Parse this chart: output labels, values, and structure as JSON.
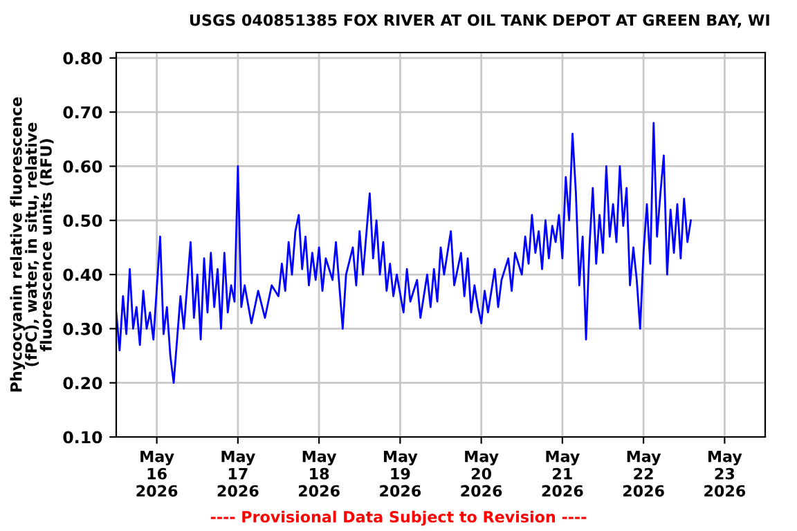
{
  "chart_data": {
    "type": "line",
    "title": "USGS 040851385 FOX RIVER AT OIL TANK DEPOT AT GREEN BAY, WI",
    "ylabel": "Phycocyanin relative fluorescence\n(fPC), water, in situ, relative\nfluorescence units (RFU)",
    "annotations": [
      "---- Provisional Data Subject to Revision ----"
    ],
    "xlim": [
      "2026-05-15T12:00",
      "2026-05-23T12:00"
    ],
    "xticks": [
      {
        "value": "2026-05-16",
        "label": "May\n16\n2026"
      },
      {
        "value": "2026-05-17",
        "label": "May\n17\n2026"
      },
      {
        "value": "2026-05-18",
        "label": "May\n18\n2026"
      },
      {
        "value": "2026-05-19",
        "label": "May\n19\n2026"
      },
      {
        "value": "2026-05-20",
        "label": "May\n20\n2026"
      },
      {
        "value": "2026-05-21",
        "label": "May\n21\n2026"
      },
      {
        "value": "2026-05-22",
        "label": "May\n22\n2026"
      },
      {
        "value": "2026-05-23",
        "label": "May\n23\n2026"
      }
    ],
    "ylim": [
      0.1,
      0.81
    ],
    "yticks": [
      {
        "value": 0.1,
        "label": "0.10"
      },
      {
        "value": 0.2,
        "label": "0.20"
      },
      {
        "value": 0.3,
        "label": "0.30"
      },
      {
        "value": 0.4,
        "label": "0.40"
      },
      {
        "value": 0.5,
        "label": "0.50"
      },
      {
        "value": 0.6,
        "label": "0.60"
      },
      {
        "value": 0.7,
        "label": "0.70"
      },
      {
        "value": 0.8,
        "label": "0.80"
      }
    ],
    "grid": true,
    "legend": false,
    "marker": "none",
    "line_style": "solid",
    "series": [
      {
        "color": "#0000ff",
        "x": [
          "2026-05-15T12:00",
          "2026-05-15T13:00",
          "2026-05-15T14:00",
          "2026-05-15T15:00",
          "2026-05-15T16:00",
          "2026-05-15T17:00",
          "2026-05-15T18:00",
          "2026-05-15T19:00",
          "2026-05-15T20:00",
          "2026-05-15T21:00",
          "2026-05-15T22:00",
          "2026-05-15T23:00",
          "2026-05-16T01:00",
          "2026-05-16T02:00",
          "2026-05-16T03:00",
          "2026-05-16T04:00",
          "2026-05-16T05:00",
          "2026-05-16T06:00",
          "2026-05-16T07:00",
          "2026-05-16T08:00",
          "2026-05-16T10:00",
          "2026-05-16T11:00",
          "2026-05-16T12:00",
          "2026-05-16T13:00",
          "2026-05-16T14:00",
          "2026-05-16T15:00",
          "2026-05-16T16:00",
          "2026-05-16T17:00",
          "2026-05-16T18:00",
          "2026-05-16T19:00",
          "2026-05-16T20:00",
          "2026-05-16T21:00",
          "2026-05-16T22:00",
          "2026-05-16T23:00",
          "2026-05-17T00:00",
          "2026-05-17T01:00",
          "2026-05-17T02:00",
          "2026-05-17T04:00",
          "2026-05-17T06:00",
          "2026-05-17T08:00",
          "2026-05-17T10:00",
          "2026-05-17T12:00",
          "2026-05-17T13:00",
          "2026-05-17T14:00",
          "2026-05-17T15:00",
          "2026-05-17T16:00",
          "2026-05-17T17:00",
          "2026-05-17T18:00",
          "2026-05-17T19:00",
          "2026-05-17T20:00",
          "2026-05-17T21:00",
          "2026-05-17T22:00",
          "2026-05-17T23:00",
          "2026-05-18T00:00",
          "2026-05-18T01:00",
          "2026-05-18T02:00",
          "2026-05-18T04:00",
          "2026-05-18T05:00",
          "2026-05-18T07:00",
          "2026-05-18T08:00",
          "2026-05-18T10:00",
          "2026-05-18T11:00",
          "2026-05-18T12:00",
          "2026-05-18T13:00",
          "2026-05-18T15:00",
          "2026-05-18T16:00",
          "2026-05-18T17:00",
          "2026-05-18T18:00",
          "2026-05-18T19:00",
          "2026-05-18T20:00",
          "2026-05-18T21:00",
          "2026-05-18T22:00",
          "2026-05-18T23:00",
          "2026-05-19T01:00",
          "2026-05-19T02:00",
          "2026-05-19T03:00",
          "2026-05-19T05:00",
          "2026-05-19T06:00",
          "2026-05-19T08:00",
          "2026-05-19T09:00",
          "2026-05-19T10:00",
          "2026-05-19T11:00",
          "2026-05-19T12:00",
          "2026-05-19T13:00",
          "2026-05-19T15:00",
          "2026-05-19T16:00",
          "2026-05-19T18:00",
          "2026-05-19T19:00",
          "2026-05-19T20:00",
          "2026-05-19T21:00",
          "2026-05-19T22:00",
          "2026-05-19T23:00",
          "2026-05-20T00:00",
          "2026-05-20T01:00",
          "2026-05-20T02:00",
          "2026-05-20T04:00",
          "2026-05-20T05:00",
          "2026-05-20T06:00",
          "2026-05-20T08:00",
          "2026-05-20T09:00",
          "2026-05-20T10:00",
          "2026-05-20T12:00",
          "2026-05-20T13:00",
          "2026-05-20T14:00",
          "2026-05-20T15:00",
          "2026-05-20T16:00",
          "2026-05-20T17:00",
          "2026-05-20T18:00",
          "2026-05-20T19:00",
          "2026-05-20T20:00",
          "2026-05-20T21:00",
          "2026-05-20T22:00",
          "2026-05-20T23:00",
          "2026-05-21T00:00",
          "2026-05-21T01:00",
          "2026-05-21T02:00",
          "2026-05-21T03:00",
          "2026-05-21T04:00",
          "2026-05-21T05:00",
          "2026-05-21T06:00",
          "2026-05-21T07:00",
          "2026-05-21T08:00",
          "2026-05-21T09:00",
          "2026-05-21T10:00",
          "2026-05-21T11:00",
          "2026-05-21T12:00",
          "2026-05-21T13:00",
          "2026-05-21T14:00",
          "2026-05-21T15:00",
          "2026-05-21T16:00",
          "2026-05-21T17:00",
          "2026-05-21T18:00",
          "2026-05-21T19:00",
          "2026-05-21T20:00",
          "2026-05-21T21:00",
          "2026-05-21T22:00",
          "2026-05-21T23:00",
          "2026-05-22T00:00",
          "2026-05-22T01:00",
          "2026-05-22T02:00",
          "2026-05-22T03:00",
          "2026-05-22T04:00",
          "2026-05-22T05:00",
          "2026-05-22T06:00",
          "2026-05-22T07:00",
          "2026-05-22T08:00",
          "2026-05-22T09:00",
          "2026-05-22T10:00",
          "2026-05-22T11:00",
          "2026-05-22T12:00",
          "2026-05-22T13:00",
          "2026-05-22T14:00"
        ],
        "values": [
          0.33,
          0.26,
          0.36,
          0.29,
          0.41,
          0.3,
          0.34,
          0.27,
          0.37,
          0.3,
          0.33,
          0.28,
          0.47,
          0.29,
          0.34,
          0.25,
          0.2,
          0.28,
          0.36,
          0.3,
          0.46,
          0.32,
          0.4,
          0.28,
          0.43,
          0.33,
          0.44,
          0.34,
          0.41,
          0.3,
          0.44,
          0.33,
          0.38,
          0.35,
          0.6,
          0.34,
          0.38,
          0.31,
          0.37,
          0.32,
          0.38,
          0.36,
          0.42,
          0.37,
          0.46,
          0.4,
          0.48,
          0.51,
          0.41,
          0.47,
          0.38,
          0.44,
          0.39,
          0.45,
          0.37,
          0.43,
          0.39,
          0.46,
          0.3,
          0.4,
          0.45,
          0.38,
          0.48,
          0.4,
          0.55,
          0.43,
          0.5,
          0.4,
          0.46,
          0.37,
          0.42,
          0.36,
          0.4,
          0.33,
          0.41,
          0.35,
          0.39,
          0.32,
          0.4,
          0.34,
          0.41,
          0.35,
          0.45,
          0.4,
          0.48,
          0.38,
          0.44,
          0.36,
          0.43,
          0.33,
          0.38,
          0.34,
          0.31,
          0.37,
          0.33,
          0.41,
          0.34,
          0.39,
          0.43,
          0.37,
          0.44,
          0.4,
          0.47,
          0.42,
          0.51,
          0.44,
          0.48,
          0.41,
          0.5,
          0.43,
          0.49,
          0.46,
          0.51,
          0.43,
          0.58,
          0.5,
          0.66,
          0.55,
          0.38,
          0.47,
          0.28,
          0.45,
          0.56,
          0.42,
          0.51,
          0.44,
          0.6,
          0.47,
          0.53,
          0.46,
          0.6,
          0.49,
          0.56,
          0.38,
          0.45,
          0.39,
          0.3,
          0.44,
          0.53,
          0.42,
          0.68,
          0.47,
          0.55,
          0.62,
          0.4,
          0.52,
          0.44,
          0.53,
          0.43,
          0.54,
          0.46,
          0.5
        ]
      }
    ]
  }
}
